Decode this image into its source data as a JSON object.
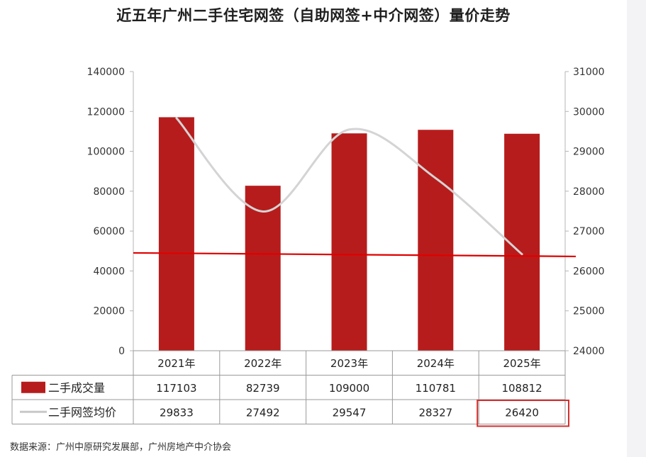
{
  "title": "近五年广州二手住宅网签（自助网签+中介网签）量价走势",
  "source": "数据来源：广州中原研究发展部，广州房地产中介协会",
  "chart_data": {
    "type": "bar",
    "categories": [
      "2021年",
      "2022年",
      "2023年",
      "2024年",
      "2025年"
    ],
    "series": [
      {
        "name": "二手成交量",
        "type": "bar",
        "axis": "left",
        "color": "#b71c1c",
        "values": [
          117103,
          82739,
          109000,
          110781,
          108812
        ]
      },
      {
        "name": "二手网签均价",
        "type": "line",
        "axis": "right",
        "color": "#d4d4d4",
        "values": [
          29833,
          27492,
          29547,
          28327,
          26420
        ]
      }
    ],
    "y_left": {
      "min": 0,
      "max": 140000,
      "ticks": [
        "0",
        "20000",
        "40000",
        "60000",
        "80000",
        "100000",
        "120000",
        "140000"
      ]
    },
    "y_right": {
      "min": 24000,
      "max": 31000,
      "ticks": [
        "24000",
        "25000",
        "26000",
        "27000",
        "28000",
        "29000",
        "30000",
        "31000"
      ]
    },
    "reference_line": {
      "axis": "right",
      "value": 26400,
      "color": "#e00000"
    },
    "highlight": {
      "series": "二手网签均价",
      "category": "2025年",
      "color": "#d32f2f"
    },
    "grid": false,
    "legend": "table-bottom"
  }
}
